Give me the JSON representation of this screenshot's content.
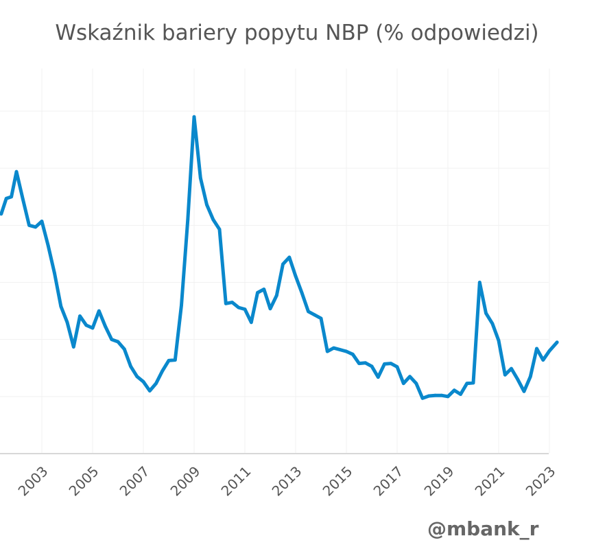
{
  "chart_data": {
    "type": "line",
    "title": "Wskaźnik bariery popytu NBP (% odpowiedzi)",
    "xlabel": "",
    "ylabel": "",
    "x_ticks": [
      "2003",
      "2005",
      "2007",
      "2009",
      "2011",
      "2013",
      "2015",
      "2017",
      "2019",
      "2021",
      "2023"
    ],
    "grid": true,
    "series": [
      {
        "color": "#0a88cc",
        "points": [
          [
            2001.4,
            52.0
          ],
          [
            2001.6,
            54.7
          ],
          [
            2001.8,
            55.0
          ],
          [
            2002.0,
            59.4
          ],
          [
            2002.25,
            54.6
          ],
          [
            2002.5,
            50.0
          ],
          [
            2002.75,
            49.7
          ],
          [
            2003.0,
            50.7
          ],
          [
            2003.25,
            46.4
          ],
          [
            2003.5,
            41.6
          ],
          [
            2003.75,
            35.8
          ],
          [
            2004.0,
            33.0
          ],
          [
            2004.25,
            28.7
          ],
          [
            2004.5,
            34.1
          ],
          [
            2004.75,
            32.5
          ],
          [
            2005.0,
            32.0
          ],
          [
            2005.25,
            35.0
          ],
          [
            2005.5,
            32.3
          ],
          [
            2005.75,
            30.0
          ],
          [
            2006.0,
            29.6
          ],
          [
            2006.25,
            28.3
          ],
          [
            2006.5,
            25.3
          ],
          [
            2006.75,
            23.5
          ],
          [
            2007.0,
            22.6
          ],
          [
            2007.25,
            21.0
          ],
          [
            2007.5,
            22.3
          ],
          [
            2007.75,
            24.5
          ],
          [
            2008.0,
            26.3
          ],
          [
            2008.25,
            26.4
          ],
          [
            2008.5,
            36.0
          ],
          [
            2008.75,
            51.0
          ],
          [
            2009.0,
            69.0
          ],
          [
            2009.25,
            58.3
          ],
          [
            2009.5,
            53.6
          ],
          [
            2009.75,
            51.0
          ],
          [
            2010.0,
            49.3
          ],
          [
            2010.25,
            36.3
          ],
          [
            2010.5,
            36.5
          ],
          [
            2010.75,
            35.6
          ],
          [
            2011.0,
            35.3
          ],
          [
            2011.25,
            33.0
          ],
          [
            2011.5,
            38.2
          ],
          [
            2011.75,
            38.8
          ],
          [
            2012.0,
            35.4
          ],
          [
            2012.25,
            37.7
          ],
          [
            2012.5,
            43.2
          ],
          [
            2012.75,
            44.4
          ],
          [
            2013.0,
            41.1
          ],
          [
            2013.25,
            38.1
          ],
          [
            2013.5,
            34.9
          ],
          [
            2013.75,
            34.3
          ],
          [
            2014.0,
            33.7
          ],
          [
            2014.25,
            27.9
          ],
          [
            2014.5,
            28.5
          ],
          [
            2014.75,
            28.2
          ],
          [
            2015.0,
            27.9
          ],
          [
            2015.25,
            27.4
          ],
          [
            2015.5,
            25.8
          ],
          [
            2015.75,
            25.9
          ],
          [
            2016.0,
            25.3
          ],
          [
            2016.25,
            23.4
          ],
          [
            2016.5,
            25.7
          ],
          [
            2016.75,
            25.8
          ],
          [
            2017.0,
            25.2
          ],
          [
            2017.25,
            22.3
          ],
          [
            2017.5,
            23.5
          ],
          [
            2017.75,
            22.3
          ],
          [
            2018.0,
            19.7
          ],
          [
            2018.25,
            20.1
          ],
          [
            2018.5,
            20.2
          ],
          [
            2018.75,
            20.2
          ],
          [
            2019.0,
            20.0
          ],
          [
            2019.25,
            21.1
          ],
          [
            2019.5,
            20.4
          ],
          [
            2019.75,
            22.3
          ],
          [
            2020.0,
            22.4
          ],
          [
            2020.25,
            40.0
          ],
          [
            2020.5,
            34.6
          ],
          [
            2020.75,
            32.8
          ],
          [
            2021.0,
            29.8
          ],
          [
            2021.25,
            23.8
          ],
          [
            2021.5,
            24.9
          ],
          [
            2021.75,
            23.0
          ],
          [
            2022.0,
            20.9
          ],
          [
            2022.25,
            23.5
          ],
          [
            2022.5,
            28.4
          ],
          [
            2022.75,
            26.4
          ],
          [
            2023.0,
            28.0
          ],
          [
            2023.3,
            29.5
          ]
        ]
      }
    ]
  },
  "watermark": "@mbank_r"
}
